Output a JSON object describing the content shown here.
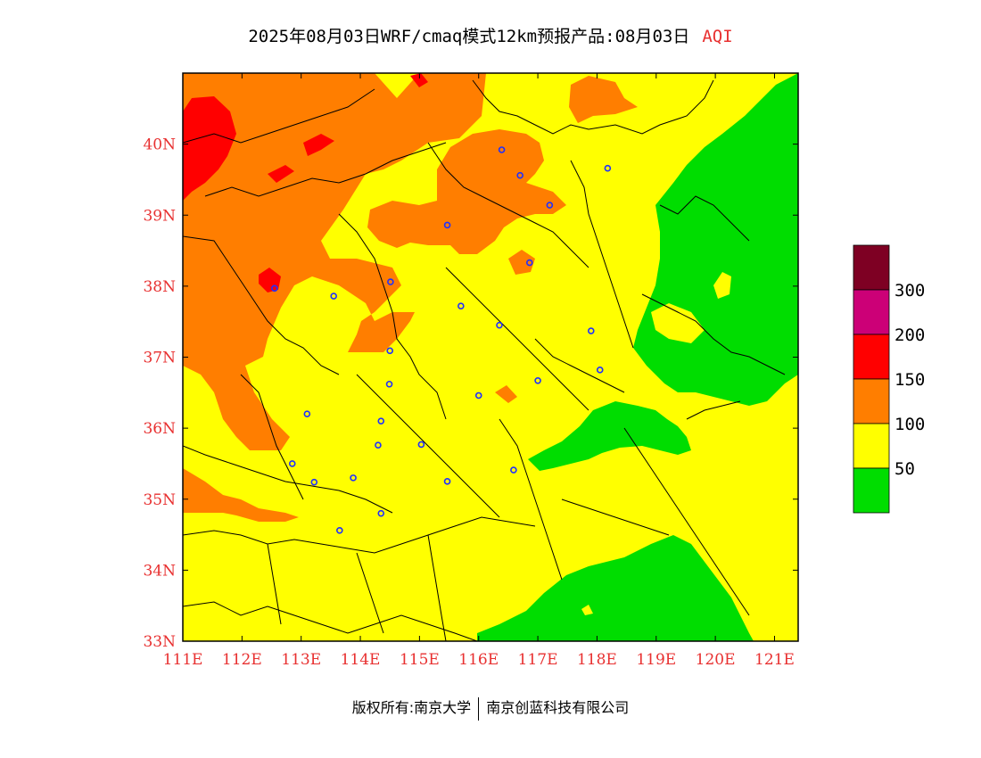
{
  "title": {
    "main": "2025年08月03日WRF/cmaq模式12km预报产品:08月03日",
    "tag": "AQI"
  },
  "map": {
    "lon_labels": [
      "111E",
      "112E",
      "113E",
      "114E",
      "115E",
      "116E",
      "117E",
      "118E",
      "119E",
      "120E",
      "121E"
    ],
    "lat_labels": [
      "33N",
      "34N",
      "35N",
      "36N",
      "37N",
      "38N",
      "39N",
      "40N"
    ],
    "lon_range": [
      111,
      121.4
    ],
    "lat_range": [
      33,
      41
    ]
  },
  "legend": {
    "thresholds": [
      "50",
      "100",
      "150",
      "200",
      "300"
    ],
    "colors": {
      "good": "#00dd00",
      "moderate": "#ffff00",
      "unhealthy_sensitive": "#ff7e00",
      "unhealthy": "#ff0000",
      "very_unhealthy": "#cc0077",
      "hazardous": "#7e0023"
    }
  },
  "cities": [
    {
      "lon": 112.55,
      "lat": 37.97
    },
    {
      "lon": 113.55,
      "lat": 37.86
    },
    {
      "lon": 114.51,
      "lat": 38.06
    },
    {
      "lon": 115.47,
      "lat": 38.86
    },
    {
      "lon": 115.7,
      "lat": 37.72
    },
    {
      "lon": 116.39,
      "lat": 39.92
    },
    {
      "lon": 116.7,
      "lat": 39.56
    },
    {
      "lon": 117.2,
      "lat": 39.14
    },
    {
      "lon": 116.86,
      "lat": 38.33
    },
    {
      "lon": 118.18,
      "lat": 39.66
    },
    {
      "lon": 116.35,
      "lat": 37.45
    },
    {
      "lon": 114.5,
      "lat": 37.09
    },
    {
      "lon": 114.49,
      "lat": 36.62
    },
    {
      "lon": 114.35,
      "lat": 36.1
    },
    {
      "lon": 114.3,
      "lat": 35.76
    },
    {
      "lon": 115.03,
      "lat": 35.77
    },
    {
      "lon": 116.0,
      "lat": 36.46
    },
    {
      "lon": 117.0,
      "lat": 36.67
    },
    {
      "lon": 117.9,
      "lat": 37.37
    },
    {
      "lon": 118.05,
      "lat": 36.82
    },
    {
      "lon": 113.1,
      "lat": 36.2
    },
    {
      "lon": 112.85,
      "lat": 35.5
    },
    {
      "lon": 113.22,
      "lat": 35.24
    },
    {
      "lon": 113.88,
      "lat": 35.3
    },
    {
      "lon": 115.47,
      "lat": 35.25
    },
    {
      "lon": 116.59,
      "lat": 35.41
    },
    {
      "lon": 114.35,
      "lat": 34.8
    },
    {
      "lon": 113.65,
      "lat": 34.56
    }
  ],
  "footer": {
    "left": "版权所有:南京大学",
    "right": "南京创蓝科技有限公司"
  }
}
